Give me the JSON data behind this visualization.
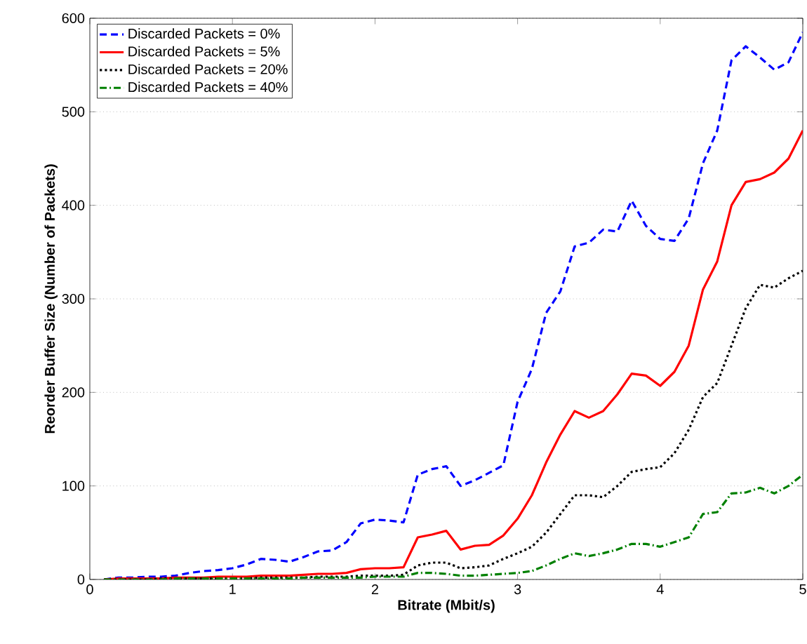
{
  "chart_data": {
    "type": "line",
    "xlabel": "Bitrate (Mbit/s)",
    "ylabel": "Reorder Buffer Size (Number of Packets)",
    "x": [
      0.1,
      0.2,
      0.3,
      0.4,
      0.5,
      0.6,
      0.7,
      0.8,
      0.9,
      1.0,
      1.1,
      1.2,
      1.3,
      1.4,
      1.5,
      1.6,
      1.7,
      1.8,
      1.9,
      2.0,
      2.1,
      2.2,
      2.3,
      2.4,
      2.5,
      2.6,
      2.7,
      2.8,
      2.9,
      3.0,
      3.1,
      3.2,
      3.3,
      3.4,
      3.5,
      3.6,
      3.7,
      3.8,
      3.9,
      4.0,
      4.1,
      4.2,
      4.3,
      4.4,
      4.5,
      4.6,
      4.7,
      4.8,
      4.9,
      5.0
    ],
    "series": [
      {
        "name": "Discarded Packets = 0%",
        "color": "#0000ff",
        "line_style": "dashed",
        "values": [
          0,
          2,
          2,
          3,
          3,
          4,
          7,
          9,
          10,
          12,
          16,
          22,
          21,
          19,
          24,
          30,
          31,
          40,
          60,
          64,
          63,
          61,
          112,
          118,
          121,
          100,
          106,
          114,
          122,
          190,
          225,
          285,
          308,
          356,
          360,
          374,
          372,
          405,
          378,
          364,
          362,
          386,
          445,
          480,
          555,
          570,
          558,
          545,
          553,
          585
        ]
      },
      {
        "name": "Discarded Packets = 5%",
        "color": "#ff0000",
        "line_style": "solid",
        "values": [
          0,
          1,
          1,
          1,
          1,
          2,
          2,
          2,
          3,
          3,
          3,
          4,
          4,
          4,
          5,
          6,
          6,
          7,
          11,
          12,
          12,
          13,
          45,
          48,
          52,
          32,
          36,
          37,
          47,
          65,
          90,
          125,
          155,
          180,
          173,
          180,
          198,
          220,
          218,
          207,
          222,
          250,
          310,
          340,
          400,
          425,
          428,
          435,
          450,
          480
        ]
      },
      {
        "name": "Discarded Packets = 20%",
        "color": "#000000",
        "line_style": "dotted",
        "values": [
          0,
          0,
          0,
          0,
          1,
          1,
          1,
          1,
          1,
          1,
          1,
          2,
          2,
          2,
          2,
          3,
          3,
          3,
          4,
          4,
          4,
          5,
          15,
          18,
          18,
          12,
          13,
          15,
          22,
          28,
          35,
          50,
          70,
          90,
          90,
          88,
          100,
          115,
          118,
          120,
          135,
          160,
          195,
          210,
          250,
          290,
          315,
          312,
          322,
          330
        ]
      },
      {
        "name": "Discarded Packets = 40%",
        "color": "#008000",
        "line_style": "dashdot",
        "values": [
          0,
          0,
          0,
          0,
          0,
          1,
          1,
          1,
          1,
          1,
          1,
          1,
          1,
          1,
          2,
          2,
          2,
          2,
          2,
          3,
          3,
          3,
          7,
          7,
          6,
          4,
          4,
          5,
          6,
          7,
          9,
          15,
          22,
          28,
          25,
          28,
          32,
          38,
          38,
          35,
          40,
          45,
          70,
          72,
          92,
          93,
          98,
          92,
          100,
          112
        ]
      }
    ],
    "xlim": [
      0,
      5
    ],
    "ylim": [
      0,
      600
    ],
    "xticks": [
      0,
      1,
      2,
      3,
      4,
      5
    ],
    "yticks": [
      0,
      100,
      200,
      300,
      400,
      500,
      600
    ],
    "grid": "y",
    "legend": "top left"
  }
}
